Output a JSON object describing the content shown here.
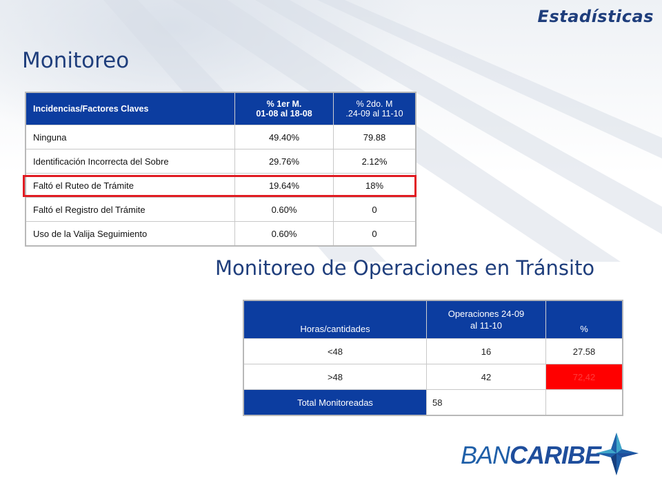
{
  "slide": {
    "section_title": "Estadísticas"
  },
  "monitoreo": {
    "heading": "Monitoreo",
    "headers": {
      "col1": "Incidencias/Factores Claves",
      "col2_line1": "% 1er M.",
      "col2_line2": "01-08 al 18-08",
      "col3_line1": "% 2do. M",
      "col3_line2": ".24-09 al 11-10"
    },
    "rows": [
      {
        "factor": "Ninguna",
        "m1": "49.40%",
        "m2": "79.88"
      },
      {
        "factor": "Identificación Incorrecta del Sobre",
        "m1": "29.76%",
        "m2": "2.12%"
      },
      {
        "factor": "Faltó el Ruteo de Trámite",
        "m1": "19.64%",
        "m2": "18%"
      },
      {
        "factor": "Faltó el Registro del Trámite",
        "m1": "0.60%",
        "m2": "0"
      },
      {
        "factor": "Uso de la Valija Seguimiento",
        "m1": "0.60%",
        "m2": "0"
      }
    ],
    "highlight_color": "#e11b22"
  },
  "transito": {
    "heading": "Monitoreo de Operaciones en Tránsito",
    "headers": {
      "col1": "Horas/cantidades",
      "col2_line1": "Operaciones 24-09",
      "col2_line2": "al 11-10",
      "col3": "%"
    },
    "rows": [
      {
        "label": "<48",
        "ops": "16",
        "pct": "27.58"
      },
      {
        "label": ">48",
        "ops": "42",
        "pct": "72,42"
      },
      {
        "label": "Total Monitoreadas",
        "ops": "58",
        "pct": ""
      }
    ],
    "alert_color": "#ff0000"
  },
  "logo": {
    "text_part1": "BAN",
    "text_part2": "CARIBE",
    "icon": "compass-star-icon"
  },
  "colors": {
    "header_blue": "#0c3da0",
    "title_navy": "#1f3e7c"
  }
}
